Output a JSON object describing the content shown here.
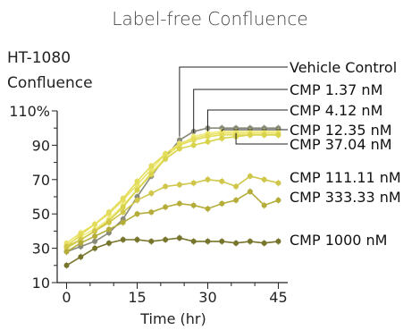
{
  "chart_data": {
    "type": "line",
    "title": "Label-free Confluence",
    "ylabel_line1": "HT-1080",
    "ylabel_line2": "Confluence",
    "xlabel": "Time (hr)",
    "x_ticks": [
      "0",
      "15",
      "30",
      "45"
    ],
    "y_ticks": [
      "10",
      "30",
      "50",
      "70",
      "90",
      "110%"
    ],
    "xlim": [
      -2,
      47
    ],
    "ylim": [
      10,
      110
    ],
    "x": [
      0,
      3,
      6,
      9,
      12,
      15,
      18,
      21,
      24,
      27,
      30,
      33,
      36,
      39,
      42,
      45
    ],
    "series": [
      {
        "name": "Vehicle Control",
        "color": "#8a8a7a",
        "values": [
          28,
          31,
          34,
          39,
          47,
          60,
          72,
          83,
          93,
          98,
          100,
          100,
          100,
          100,
          100,
          100
        ]
      },
      {
        "name": "CMP 1.37 nM",
        "color": "#f0ec7a",
        "values": [
          32,
          37,
          41,
          47,
          55,
          64,
          74,
          83,
          90,
          95,
          97,
          98,
          98,
          98,
          98,
          98
        ]
      },
      {
        "name": "CMP 4.12 nM",
        "color": "#ebe36a",
        "values": [
          33,
          39,
          44,
          50,
          58,
          67,
          76,
          85,
          91,
          94,
          96,
          97,
          97,
          97,
          97,
          97
        ]
      },
      {
        "name": "CMP 12.35 nM",
        "color": "#e3dc5a",
        "values": [
          31,
          38,
          44,
          51,
          59,
          69,
          78,
          85,
          90,
          93,
          95,
          96,
          96,
          96,
          96,
          96
        ]
      },
      {
        "name": "CMP 37.04 nM",
        "color": "#d9d34c",
        "values": [
          30,
          35,
          40,
          46,
          54,
          64,
          73,
          82,
          88,
          90,
          92,
          94,
          95,
          96,
          96,
          96
        ]
      },
      {
        "name": "CMP 111.11 nM",
        "color": "#cfc64a",
        "values": [
          31,
          35,
          40,
          45,
          51,
          58,
          62,
          66,
          67,
          68,
          70,
          69,
          66,
          72,
          70,
          68
        ]
      },
      {
        "name": "CMP 333.33 nM",
        "color": "#b5ad3a",
        "values": [
          28,
          33,
          37,
          41,
          45,
          50,
          51,
          54,
          56,
          55,
          53,
          56,
          58,
          63,
          55,
          58
        ]
      },
      {
        "name": "CMP 1000 nM",
        "color": "#77742c",
        "values": [
          20,
          25,
          30,
          33,
          35,
          35,
          34,
          35,
          36,
          34,
          34,
          34,
          33,
          34,
          33,
          34
        ]
      }
    ]
  }
}
